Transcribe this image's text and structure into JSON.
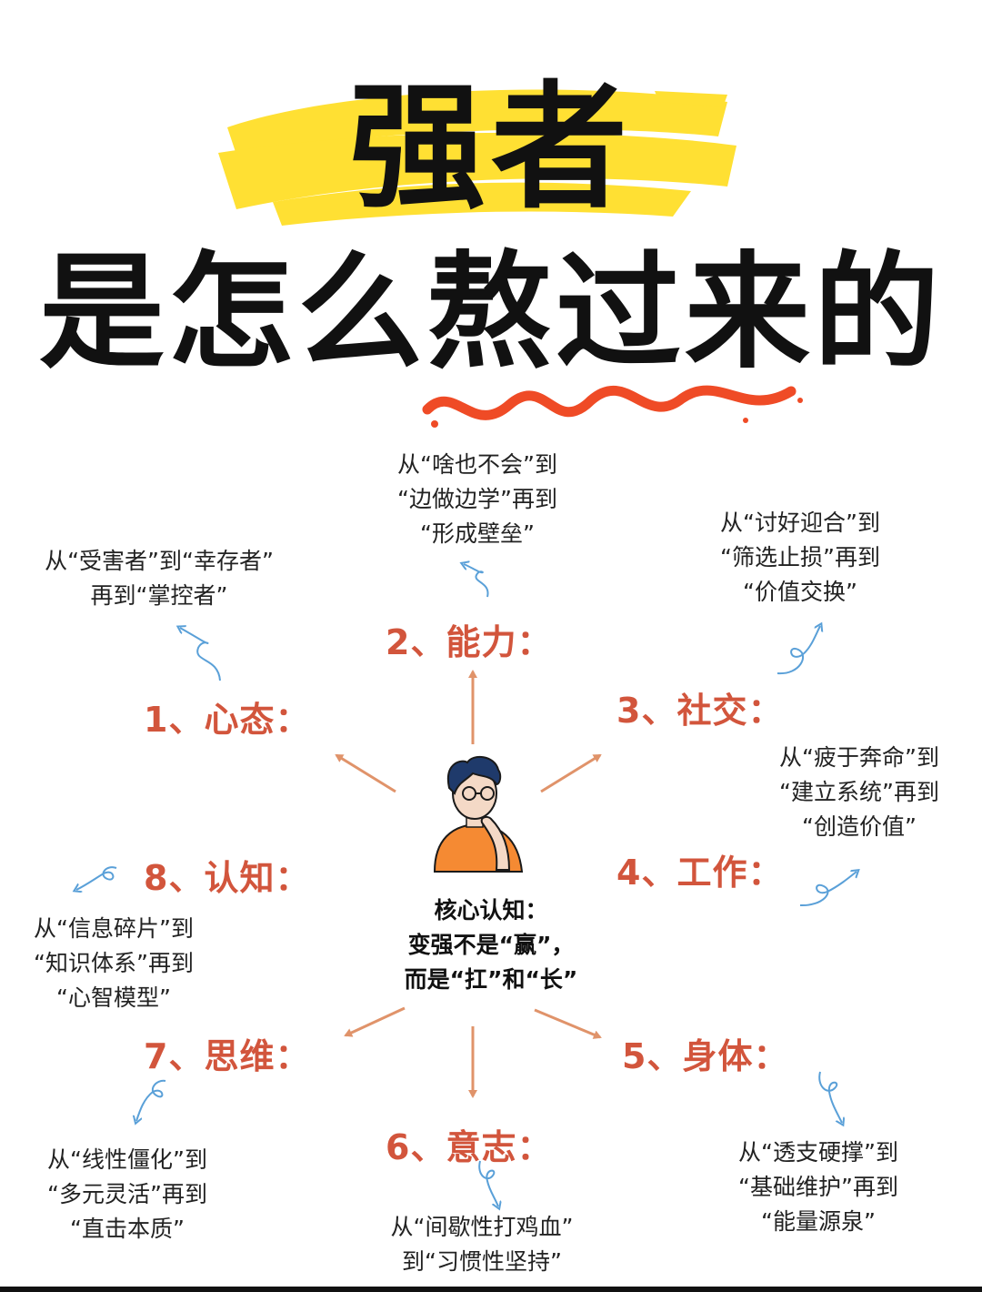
{
  "title": {
    "main": "强者",
    "sub": "是怎么熬过来的"
  },
  "colors": {
    "heading": "#d2553c",
    "highlight": "#ffe033",
    "squiggle": "#ef4b26",
    "arrow": "#e0936a",
    "curl": "#5aa0d8",
    "shirt": "#f58a33"
  },
  "core": {
    "line1": "核心认知：",
    "line2": "变强不是“赢”，",
    "line3": "而是“扛”和“长”"
  },
  "items": [
    {
      "heading": "1、心态：",
      "lines": [
        "从“受害者”到“幸存者”",
        "再到“掌控者”"
      ]
    },
    {
      "heading": "2、能力：",
      "lines": [
        "从“啥也不会”到",
        "“边做边学”再到",
        "“形成壁垒”"
      ]
    },
    {
      "heading": "3、社交：",
      "lines": [
        "从“讨好迎合”到",
        "“筛选止损”再到",
        "“价值交换”"
      ]
    },
    {
      "heading": "4、工作：",
      "lines": [
        "从“疲于奔命”到",
        "“建立系统”再到",
        "“创造价值”"
      ]
    },
    {
      "heading": "5、身体：",
      "lines": [
        "从“透支硬撑”到",
        "“基础维护”再到",
        "“能量源泉”"
      ]
    },
    {
      "heading": "6、意志：",
      "lines": [
        "从“间歇性打鸡血”",
        "到“习惯性坚持”"
      ]
    },
    {
      "heading": "7、思维：",
      "lines": [
        "从“线性僵化”到",
        "“多元灵活”再到",
        "“直击本质”"
      ]
    },
    {
      "heading": "8、认知：",
      "lines": [
        "从“信息碎片”到",
        "“知识体系”再到",
        "“心智模型”"
      ]
    }
  ],
  "icons": [
    "thinking-person-icon",
    "arrow-icon",
    "curl-arrow-icon"
  ]
}
